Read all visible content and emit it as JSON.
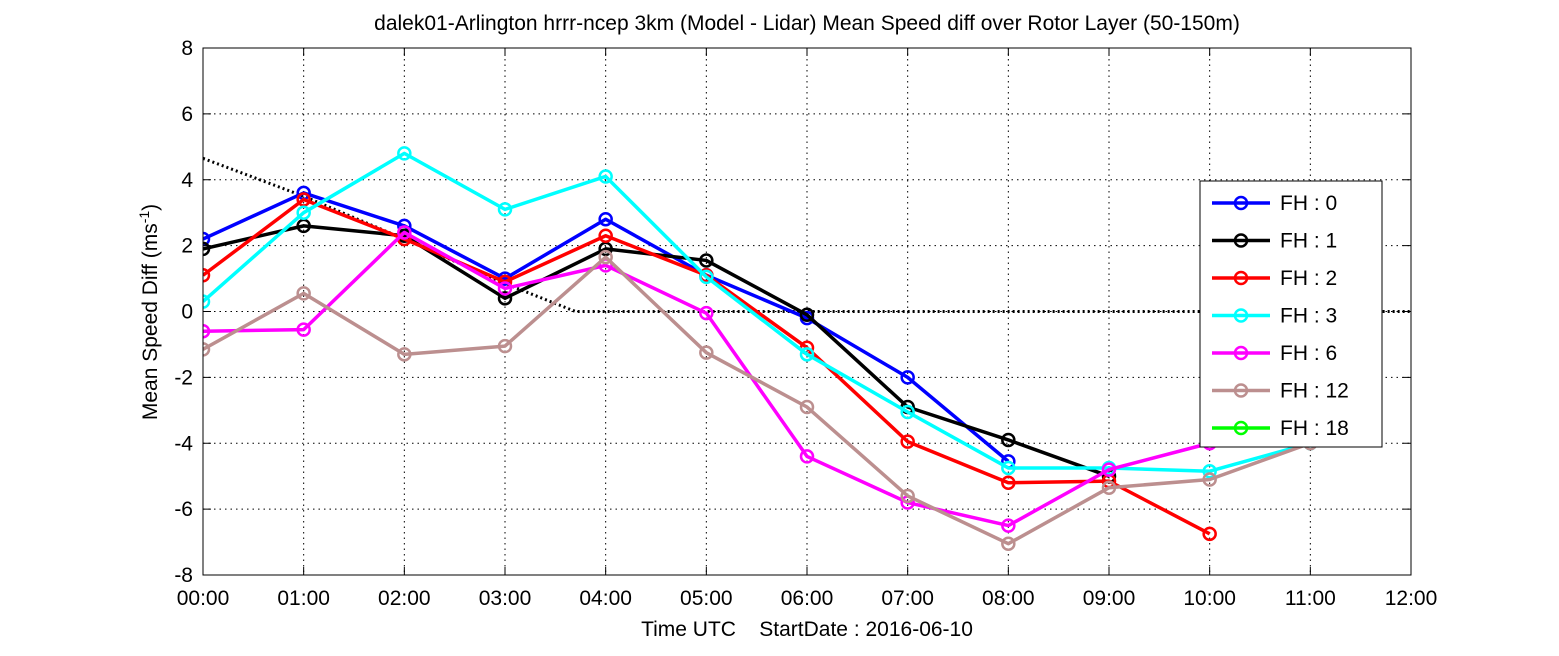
{
  "chart_data": {
    "type": "line",
    "title": "dalek01-Arlington hrrr-ncep 3km (Model - Lidar) Mean Speed diff over Rotor Layer (50-150m)",
    "xlabel": "Time UTC    StartDate : 2016-06-10",
    "ylabel": "Mean Speed Diff (ms",
    "ylabel_sup": "-1",
    "ylabel_end": ")",
    "xlim": [
      0,
      12
    ],
    "ylim": [
      -8,
      8
    ],
    "x_ticks": [
      0,
      1,
      2,
      3,
      4,
      5,
      6,
      7,
      8,
      9,
      10,
      11,
      12
    ],
    "x_tick_labels": [
      "00:00",
      "01:00",
      "02:00",
      "03:00",
      "04:00",
      "05:00",
      "06:00",
      "07:00",
      "08:00",
      "09:00",
      "10:00",
      "11:00",
      "12:00"
    ],
    "y_ticks": [
      -8,
      -6,
      -4,
      -2,
      0,
      2,
      4,
      6,
      8
    ],
    "y_tick_labels": [
      "-8",
      "-6",
      "-4",
      "-2",
      "0",
      "2",
      "4",
      "6",
      "8"
    ],
    "grid": true,
    "legend_position": "right",
    "reference_line": {
      "style": "dotted",
      "color": "#000000",
      "x": [
        0,
        1,
        2,
        3,
        3.7,
        12
      ],
      "y": [
        4.65,
        3.5,
        2.2,
        0.85,
        0,
        0
      ]
    },
    "series": [
      {
        "name": "FH : 0",
        "color": "#0000ff",
        "x": [
          0,
          1,
          2,
          3,
          4,
          5,
          6,
          7,
          8
        ],
        "y": [
          2.2,
          3.6,
          2.6,
          1.0,
          2.8,
          1.1,
          -0.2,
          -2.0,
          -4.55
        ]
      },
      {
        "name": "FH : 1",
        "color": "#000000",
        "x": [
          0,
          1,
          2,
          3,
          4,
          5,
          6,
          7,
          8,
          9
        ],
        "y": [
          1.9,
          2.6,
          2.3,
          0.4,
          1.9,
          1.55,
          -0.1,
          -2.9,
          -3.9,
          -5.0
        ]
      },
      {
        "name": "FH : 2",
        "color": "#ff0000",
        "x": [
          0,
          1,
          2,
          3,
          4,
          5,
          6,
          7,
          8,
          9,
          10
        ],
        "y": [
          1.1,
          3.4,
          2.2,
          0.9,
          2.3,
          1.1,
          -1.1,
          -3.95,
          -5.2,
          -5.15,
          -6.75
        ]
      },
      {
        "name": "FH : 3",
        "color": "#00ffff",
        "x": [
          0,
          1,
          2,
          3,
          4,
          5,
          6,
          7,
          8,
          9,
          10,
          11
        ],
        "y": [
          0.3,
          3.0,
          4.8,
          3.1,
          4.1,
          1.05,
          -1.3,
          -3.05,
          -4.75,
          -4.75,
          -4.85,
          -4.0
        ]
      },
      {
        "name": "FH : 6",
        "color": "#ff00ff",
        "x": [
          0,
          1,
          2,
          3,
          4,
          5,
          6,
          7,
          8,
          9,
          10
        ],
        "y": [
          -0.6,
          -0.55,
          2.4,
          0.7,
          1.4,
          -0.05,
          -4.4,
          -5.8,
          -6.5,
          -4.8,
          -4.0
        ]
      },
      {
        "name": "FH : 12",
        "color": "#bc8f8f",
        "x": [
          0,
          1,
          2,
          3,
          4,
          5,
          6,
          7,
          8,
          9,
          10,
          11
        ],
        "y": [
          -1.15,
          0.55,
          -1.3,
          -1.05,
          1.65,
          -1.25,
          -2.9,
          -5.6,
          -7.05,
          -5.35,
          -5.1,
          -4.0
        ]
      },
      {
        "name": "FH : 18",
        "color": "#00ff00",
        "x": [],
        "y": []
      }
    ]
  }
}
